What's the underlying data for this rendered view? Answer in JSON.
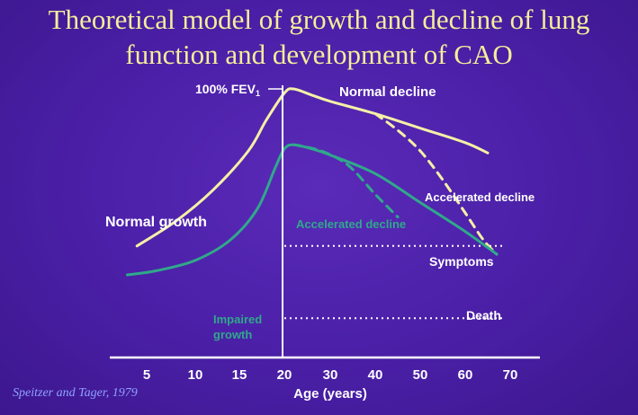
{
  "title_lines": [
    "Theoretical model of growth and decline of lung",
    "function and development of CAO"
  ],
  "credit": "Speitzer and Tager, 1979",
  "colors": {
    "background": "#4a1fa8",
    "title": "#f2ee9a",
    "normal_curve": "#f4f1a6",
    "impaired_curve": "#2fa98a",
    "text": "#ffffff",
    "credit": "#8fa2ff"
  },
  "chart_data": {
    "type": "line",
    "xlabel": "Age (years)",
    "x_ticks": [
      5,
      10,
      15,
      20,
      30,
      40,
      50,
      60,
      70
    ],
    "y_top_label": {
      "text": "100% FEV",
      "subscript": "1"
    },
    "series": [
      {
        "name": "Normal growth",
        "color": "#f4f1a6",
        "style": "solid",
        "points": [
          [
            4,
            24
          ],
          [
            8,
            36
          ],
          [
            12,
            51
          ],
          [
            16,
            70
          ],
          [
            18,
            85
          ],
          [
            20,
            98
          ],
          [
            22,
            100
          ],
          [
            26,
            97
          ],
          [
            30,
            94
          ],
          [
            40,
            88
          ],
          [
            50,
            81
          ],
          [
            60,
            74
          ],
          [
            65,
            69
          ]
        ]
      },
      {
        "name": "Normal decline",
        "color": "#f4f1a6",
        "style": "solid",
        "points": [
          [
            22,
            100
          ],
          [
            65,
            69
          ]
        ]
      },
      {
        "name": "Accelerated decline",
        "color": "#f4f1a6",
        "style": "dashed",
        "points": [
          [
            40,
            88
          ],
          [
            45,
            80
          ],
          [
            50,
            70
          ],
          [
            55,
            56
          ],
          [
            60,
            40
          ],
          [
            64,
            27
          ],
          [
            67,
            20
          ]
        ]
      },
      {
        "name": "Impaired growth",
        "color": "#2fa98a",
        "style": "solid",
        "points": [
          [
            3,
            10
          ],
          [
            6,
            12
          ],
          [
            10,
            17
          ],
          [
            14,
            27
          ],
          [
            17,
            42
          ],
          [
            19,
            62
          ],
          [
            20,
            71
          ],
          [
            22,
            73
          ],
          [
            26,
            71
          ],
          [
            30,
            68
          ],
          [
            40,
            59
          ],
          [
            50,
            45
          ],
          [
            60,
            31
          ],
          [
            67,
            20
          ]
        ]
      },
      {
        "name": "Accelerated decline",
        "color": "#2fa98a",
        "style": "dashed",
        "points": [
          [
            22,
            73
          ],
          [
            28,
            70
          ],
          [
            34,
            63
          ],
          [
            40,
            49
          ],
          [
            45,
            38
          ]
        ]
      }
    ],
    "thresholds": [
      {
        "label": "Symptoms",
        "y": 24
      },
      {
        "label": "Death",
        "y": -11
      }
    ],
    "annotations": [
      {
        "text": "Normal growth",
        "color": "#ffffff"
      },
      {
        "text": "Normal decline",
        "color": "#ffffff"
      },
      {
        "text": "Accelerated decline",
        "color": "#ffffff"
      },
      {
        "text": "Accelerated decline",
        "color": "#2fa98a"
      },
      {
        "text": "Impaired",
        "color": "#2fa98a"
      },
      {
        "text": "growth",
        "color": "#2fa98a"
      }
    ]
  }
}
